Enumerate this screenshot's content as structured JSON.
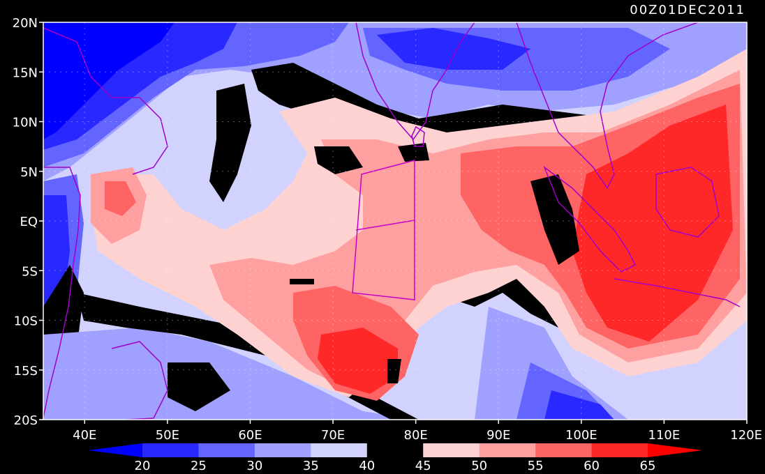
{
  "title": "00Z01DEC2011",
  "lat_labels": [
    "20N",
    "15N",
    "10N",
    "5N",
    "EQ",
    "5S",
    "10S",
    "15S",
    "20S"
  ],
  "lon_labels": [
    "40E",
    "50E",
    "60E",
    "70E",
    "80E",
    "90E",
    "100E",
    "110E",
    "120E"
  ],
  "colorbar": {
    "labels": [
      "20",
      "25",
      "30",
      "35",
      "40",
      "45",
      "50",
      "55",
      "60",
      "65"
    ],
    "colors": [
      "#0000ff",
      "#2828ff",
      "#6464ff",
      "#a0a0ff",
      "#d2d2ff",
      "#000000",
      "#ffd2d2",
      "#ffa0a0",
      "#ff6464",
      "#ff2828",
      "#ff0000"
    ]
  },
  "map": {
    "lon_range": [
      35,
      120
    ],
    "lat_range": [
      -20,
      20
    ],
    "box_color": "#c800c8",
    "coast_color": "#a000c8",
    "palette": {
      "deep_blue": "#0000ff",
      "blue": "#2828ff",
      "mid_blue": "#6464ff",
      "light_blue": "#a0a0ff",
      "pale_blue": "#d2d2ff",
      "black": "#000000",
      "pale_red": "#ffd2d2",
      "light_red": "#ffa0a0",
      "mid_red": "#ff6464",
      "red": "#ff2828"
    }
  }
}
